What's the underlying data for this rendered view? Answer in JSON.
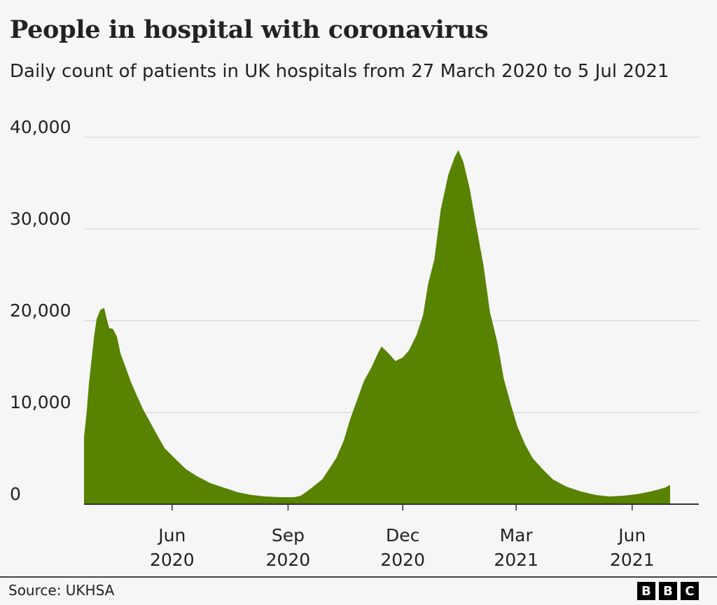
{
  "title": "People in hospital with coronavirus",
  "subtitle": "Daily count of patients in UK hospitals from 27 March 2020 to 5 Jul 2021",
  "source": "Source: UKHSA",
  "logo": [
    "B",
    "B",
    "C"
  ],
  "chart_data": {
    "type": "area",
    "title": "People in hospital with coronavirus",
    "xlabel": "",
    "ylabel": "",
    "ylim": [
      0,
      40000
    ],
    "xlim": [
      "2020-03-27",
      "2021-07-05"
    ],
    "grid": true,
    "fill_color": "#588300",
    "y_ticks": [
      {
        "value": 0,
        "label": "0"
      },
      {
        "value": 10000,
        "label": "10,000"
      },
      {
        "value": 20000,
        "label": "20,000"
      },
      {
        "value": 30000,
        "label": "30,000"
      },
      {
        "value": 40000,
        "label": "40,000"
      }
    ],
    "x_ticks": [
      {
        "date": "2020-06-01",
        "label": [
          "Jun",
          "2020"
        ]
      },
      {
        "date": "2020-09-01",
        "label": [
          "Sep",
          "2020"
        ]
      },
      {
        "date": "2020-12-01",
        "label": [
          "Dec",
          "2020"
        ]
      },
      {
        "date": "2021-03-01",
        "label": [
          "Mar",
          "2021"
        ]
      },
      {
        "date": "2021-06-01",
        "label": [
          "Jun",
          "2021"
        ]
      }
    ],
    "series": [
      {
        "x": [
          "2020-03-27",
          "2020-03-29",
          "2020-03-31",
          "2020-04-04",
          "2020-04-06",
          "2020-04-09",
          "2020-04-12",
          "2020-04-14",
          "2020-04-16",
          "2020-04-19",
          "2020-04-22",
          "2020-04-25",
          "2020-04-28",
          "2020-05-03",
          "2020-05-08",
          "2020-05-13",
          "2020-05-19",
          "2020-05-25",
          "2020-05-30",
          "2020-06-07",
          "2020-06-16",
          "2020-06-24",
          "2020-07-05",
          "2020-07-16",
          "2020-07-27",
          "2020-08-07",
          "2020-08-18",
          "2020-08-30",
          "2020-09-10",
          "2020-09-15",
          "2020-09-21",
          "2020-10-02",
          "2020-10-13",
          "2020-10-19",
          "2020-10-24",
          "2020-10-30",
          "2020-11-04",
          "2020-11-10",
          "2020-11-15",
          "2020-11-18",
          "2020-11-24",
          "2020-11-29",
          "2020-12-05",
          "2020-12-10",
          "2020-12-16",
          "2020-12-21",
          "2020-12-25",
          "2020-12-30",
          "2021-01-04",
          "2021-01-10",
          "2021-01-15",
          "2021-01-18",
          "2021-01-22",
          "2021-01-27",
          "2021-02-01",
          "2021-02-07",
          "2021-02-12",
          "2021-02-18",
          "2021-02-23",
          "2021-03-01",
          "2021-03-06",
          "2021-03-12",
          "2021-03-18",
          "2021-03-26",
          "2021-04-03",
          "2021-04-14",
          "2021-04-25",
          "2021-05-07",
          "2021-05-18",
          "2021-05-29",
          "2021-06-09",
          "2021-06-20",
          "2021-07-01",
          "2021-07-05"
        ],
        "values": [
          7300,
          9900,
          13300,
          18300,
          20200,
          21200,
          21400,
          20200,
          19200,
          19100,
          18300,
          16400,
          15300,
          13400,
          11800,
          10300,
          8800,
          7300,
          6100,
          5000,
          3800,
          3100,
          2300,
          1800,
          1300,
          1000,
          840,
          760,
          760,
          920,
          1500,
          2700,
          5000,
          6900,
          9200,
          11500,
          13400,
          14900,
          16400,
          17200,
          16400,
          15600,
          16000,
          16800,
          18500,
          20600,
          24000,
          26700,
          32100,
          35900,
          37800,
          38600,
          37300,
          34400,
          30500,
          26000,
          21000,
          17600,
          13700,
          10700,
          8400,
          6500,
          5000,
          3800,
          2700,
          1900,
          1400,
          1000,
          840,
          920,
          1100,
          1400,
          1800,
          2100
        ]
      }
    ]
  }
}
